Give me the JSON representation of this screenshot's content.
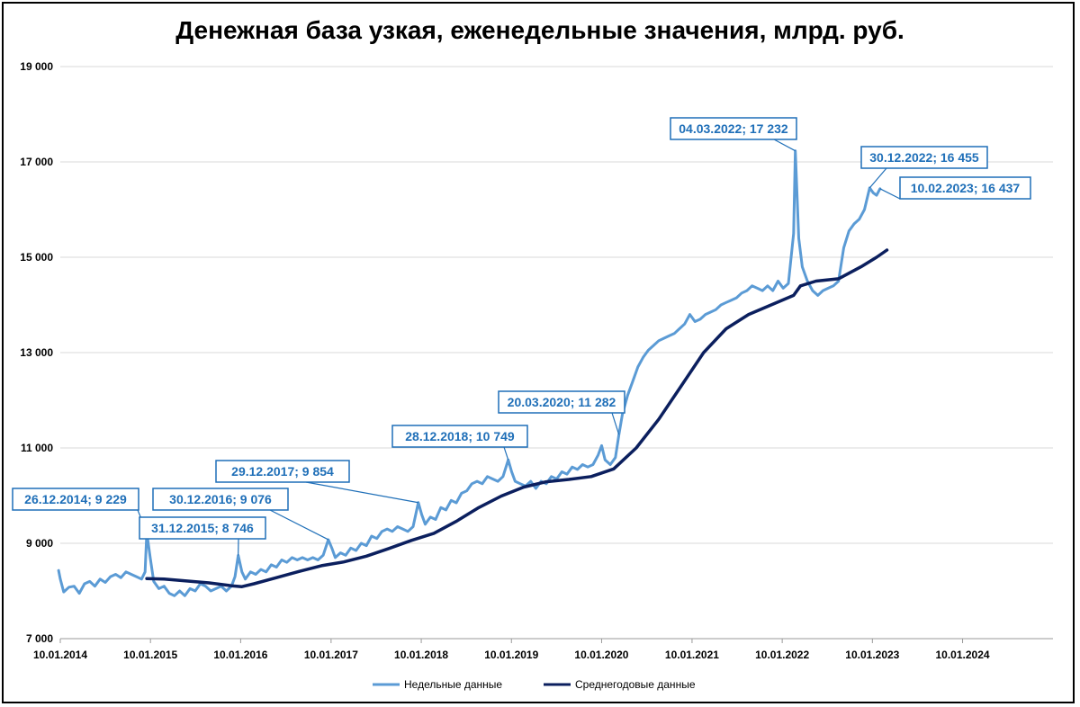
{
  "chart_data": {
    "type": "line",
    "title": "Денежная база узкая, еженедельные значения, млрд. руб.",
    "xlabel": "",
    "ylabel": "",
    "ylim": [
      7000,
      19000
    ],
    "yticks": [
      7000,
      9000,
      11000,
      13000,
      15000,
      17000,
      19000
    ],
    "ytick_labels": [
      "7 000",
      "9 000",
      "11 000",
      "13 000",
      "15 000",
      "17 000",
      "19 000"
    ],
    "xlim": [
      "2014-01-10",
      "2025-01-10"
    ],
    "xticks": [
      "2014-01-10",
      "2015-01-10",
      "2016-01-10",
      "2017-01-10",
      "2018-01-10",
      "2019-01-10",
      "2020-01-10",
      "2021-01-10",
      "2022-01-10",
      "2023-01-10",
      "2024-01-10"
    ],
    "xtick_labels": [
      "10.01.2014",
      "10.01.2015",
      "10.01.2016",
      "10.01.2017",
      "10.01.2018",
      "10.01.2019",
      "10.01.2020",
      "10.01.2021",
      "10.01.2022",
      "10.01.2023",
      "10.01.2024"
    ],
    "grid": true,
    "legend_position": "bottom",
    "series": [
      {
        "name": "Недельные данные",
        "color": "#5b9bd5",
        "points": [
          [
            "2014-01-03",
            8430
          ],
          [
            "2014-01-10",
            8250
          ],
          [
            "2014-01-24",
            7980
          ],
          [
            "2014-02-14",
            8080
          ],
          [
            "2014-03-07",
            8100
          ],
          [
            "2014-03-28",
            7950
          ],
          [
            "2014-04-18",
            8150
          ],
          [
            "2014-05-09",
            8200
          ],
          [
            "2014-05-30",
            8100
          ],
          [
            "2014-06-20",
            8250
          ],
          [
            "2014-07-11",
            8180
          ],
          [
            "2014-08-01",
            8300
          ],
          [
            "2014-08-22",
            8350
          ],
          [
            "2014-09-12",
            8280
          ],
          [
            "2014-10-03",
            8400
          ],
          [
            "2014-10-24",
            8350
          ],
          [
            "2014-11-14",
            8300
          ],
          [
            "2014-12-05",
            8250
          ],
          [
            "2014-12-19",
            8400
          ],
          [
            "2014-12-26",
            9229
          ],
          [
            "2015-01-09",
            8700
          ],
          [
            "2015-01-23",
            8200
          ],
          [
            "2015-02-13",
            8050
          ],
          [
            "2015-03-06",
            8100
          ],
          [
            "2015-03-27",
            7950
          ],
          [
            "2015-04-17",
            7900
          ],
          [
            "2015-05-08",
            8000
          ],
          [
            "2015-05-29",
            7900
          ],
          [
            "2015-06-19",
            8050
          ],
          [
            "2015-07-10",
            8000
          ],
          [
            "2015-07-31",
            8150
          ],
          [
            "2015-08-21",
            8100
          ],
          [
            "2015-09-11",
            8000
          ],
          [
            "2015-10-02",
            8050
          ],
          [
            "2015-10-23",
            8100
          ],
          [
            "2015-11-13",
            8000
          ],
          [
            "2015-12-04",
            8100
          ],
          [
            "2015-12-18",
            8300
          ],
          [
            "2015-12-31",
            8746
          ],
          [
            "2016-01-15",
            8400
          ],
          [
            "2016-01-29",
            8250
          ],
          [
            "2016-02-19",
            8400
          ],
          [
            "2016-03-11",
            8350
          ],
          [
            "2016-04-01",
            8450
          ],
          [
            "2016-04-22",
            8400
          ],
          [
            "2016-05-13",
            8550
          ],
          [
            "2016-06-03",
            8500
          ],
          [
            "2016-06-24",
            8650
          ],
          [
            "2016-07-15",
            8600
          ],
          [
            "2016-08-05",
            8700
          ],
          [
            "2016-08-26",
            8650
          ],
          [
            "2016-09-16",
            8700
          ],
          [
            "2016-10-07",
            8650
          ],
          [
            "2016-10-28",
            8700
          ],
          [
            "2016-11-18",
            8650
          ],
          [
            "2016-12-09",
            8750
          ],
          [
            "2016-12-30",
            9076
          ],
          [
            "2017-01-13",
            8900
          ],
          [
            "2017-01-27",
            8700
          ],
          [
            "2017-02-17",
            8800
          ],
          [
            "2017-03-10",
            8750
          ],
          [
            "2017-03-31",
            8900
          ],
          [
            "2017-04-21",
            8850
          ],
          [
            "2017-05-12",
            9000
          ],
          [
            "2017-06-02",
            8950
          ],
          [
            "2017-06-23",
            9150
          ],
          [
            "2017-07-14",
            9100
          ],
          [
            "2017-08-04",
            9250
          ],
          [
            "2017-08-25",
            9300
          ],
          [
            "2017-09-15",
            9250
          ],
          [
            "2017-10-06",
            9350
          ],
          [
            "2017-10-27",
            9300
          ],
          [
            "2017-11-17",
            9250
          ],
          [
            "2017-12-08",
            9350
          ],
          [
            "2017-12-29",
            9854
          ],
          [
            "2018-01-12",
            9600
          ],
          [
            "2018-01-26",
            9400
          ],
          [
            "2018-02-16",
            9550
          ],
          [
            "2018-03-09",
            9500
          ],
          [
            "2018-03-30",
            9750
          ],
          [
            "2018-04-20",
            9700
          ],
          [
            "2018-05-11",
            9900
          ],
          [
            "2018-06-01",
            9850
          ],
          [
            "2018-06-22",
            10050
          ],
          [
            "2018-07-13",
            10100
          ],
          [
            "2018-08-03",
            10250
          ],
          [
            "2018-08-24",
            10300
          ],
          [
            "2018-09-14",
            10250
          ],
          [
            "2018-10-05",
            10400
          ],
          [
            "2018-10-26",
            10350
          ],
          [
            "2018-11-16",
            10300
          ],
          [
            "2018-12-07",
            10400
          ],
          [
            "2018-12-28",
            10749
          ],
          [
            "2019-01-11",
            10500
          ],
          [
            "2019-01-25",
            10300
          ],
          [
            "2019-02-15",
            10250
          ],
          [
            "2019-03-08",
            10200
          ],
          [
            "2019-03-29",
            10300
          ],
          [
            "2019-04-19",
            10150
          ],
          [
            "2019-05-10",
            10300
          ],
          [
            "2019-05-31",
            10250
          ],
          [
            "2019-06-21",
            10400
          ],
          [
            "2019-07-12",
            10350
          ],
          [
            "2019-08-02",
            10500
          ],
          [
            "2019-08-23",
            10450
          ],
          [
            "2019-09-13",
            10600
          ],
          [
            "2019-10-04",
            10550
          ],
          [
            "2019-10-25",
            10650
          ],
          [
            "2019-11-15",
            10600
          ],
          [
            "2019-12-06",
            10650
          ],
          [
            "2019-12-27",
            10850
          ],
          [
            "2020-01-10",
            11050
          ],
          [
            "2020-01-24",
            10750
          ],
          [
            "2020-02-14",
            10650
          ],
          [
            "2020-03-06",
            10800
          ],
          [
            "2020-03-20",
            11282
          ],
          [
            "2020-04-03",
            11700
          ],
          [
            "2020-04-24",
            12100
          ],
          [
            "2020-05-15",
            12400
          ],
          [
            "2020-06-05",
            12700
          ],
          [
            "2020-06-26",
            12900
          ],
          [
            "2020-07-17",
            13050
          ],
          [
            "2020-08-07",
            13150
          ],
          [
            "2020-08-28",
            13250
          ],
          [
            "2020-09-18",
            13300
          ],
          [
            "2020-10-09",
            13350
          ],
          [
            "2020-10-30",
            13400
          ],
          [
            "2020-11-20",
            13500
          ],
          [
            "2020-12-11",
            13600
          ],
          [
            "2021-01-01",
            13800
          ],
          [
            "2021-01-22",
            13650
          ],
          [
            "2021-02-12",
            13700
          ],
          [
            "2021-03-05",
            13800
          ],
          [
            "2021-03-26",
            13850
          ],
          [
            "2021-04-16",
            13900
          ],
          [
            "2021-05-07",
            14000
          ],
          [
            "2021-05-28",
            14050
          ],
          [
            "2021-06-18",
            14100
          ],
          [
            "2021-07-09",
            14150
          ],
          [
            "2021-07-30",
            14250
          ],
          [
            "2021-08-20",
            14300
          ],
          [
            "2021-09-10",
            14400
          ],
          [
            "2021-10-01",
            14350
          ],
          [
            "2021-10-22",
            14300
          ],
          [
            "2021-11-12",
            14400
          ],
          [
            "2021-12-03",
            14300
          ],
          [
            "2021-12-24",
            14500
          ],
          [
            "2022-01-14",
            14350
          ],
          [
            "2022-02-04",
            14450
          ],
          [
            "2022-02-25",
            15500
          ],
          [
            "2022-03-04",
            17232
          ],
          [
            "2022-03-18",
            15400
          ],
          [
            "2022-04-01",
            14800
          ],
          [
            "2022-04-22",
            14500
          ],
          [
            "2022-05-13",
            14300
          ],
          [
            "2022-06-03",
            14200
          ],
          [
            "2022-06-24",
            14300
          ],
          [
            "2022-07-15",
            14350
          ],
          [
            "2022-08-05",
            14400
          ],
          [
            "2022-08-26",
            14500
          ],
          [
            "2022-09-16",
            15200
          ],
          [
            "2022-10-07",
            15550
          ],
          [
            "2022-10-28",
            15700
          ],
          [
            "2022-11-18",
            15800
          ],
          [
            "2022-12-09",
            16000
          ],
          [
            "2022-12-30",
            16455
          ],
          [
            "2023-01-13",
            16350
          ],
          [
            "2023-01-27",
            16300
          ],
          [
            "2023-02-10",
            16437
          ]
        ]
      },
      {
        "name": "Среднегодовые данные",
        "color": "#0b1f5e",
        "points": [
          [
            "2014-12-26",
            8260
          ],
          [
            "2015-03-06",
            8250
          ],
          [
            "2015-06-05",
            8210
          ],
          [
            "2015-09-04",
            8170
          ],
          [
            "2015-12-04",
            8110
          ],
          [
            "2016-01-15",
            8090
          ],
          [
            "2016-03-04",
            8150
          ],
          [
            "2016-06-03",
            8280
          ],
          [
            "2016-09-02",
            8410
          ],
          [
            "2016-12-02",
            8530
          ],
          [
            "2017-03-03",
            8610
          ],
          [
            "2017-06-02",
            8730
          ],
          [
            "2017-09-01",
            8890
          ],
          [
            "2017-12-01",
            9060
          ],
          [
            "2018-03-02",
            9210
          ],
          [
            "2018-06-01",
            9460
          ],
          [
            "2018-08-31",
            9750
          ],
          [
            "2018-11-30",
            9990
          ],
          [
            "2019-03-01",
            10180
          ],
          [
            "2019-05-31",
            10290
          ],
          [
            "2019-08-30",
            10340
          ],
          [
            "2019-11-29",
            10400
          ],
          [
            "2020-02-28",
            10560
          ],
          [
            "2020-05-29",
            11000
          ],
          [
            "2020-08-28",
            11600
          ],
          [
            "2020-11-27",
            12300
          ],
          [
            "2021-02-26",
            13000
          ],
          [
            "2021-05-28",
            13500
          ],
          [
            "2021-08-27",
            13800
          ],
          [
            "2021-11-26",
            14000
          ],
          [
            "2022-02-25",
            14200
          ],
          [
            "2022-03-25",
            14400
          ],
          [
            "2022-05-27",
            14500
          ],
          [
            "2022-08-26",
            14550
          ],
          [
            "2022-11-25",
            14800
          ],
          [
            "2023-01-27",
            15000
          ],
          [
            "2023-03-10",
            15150
          ]
        ]
      }
    ],
    "annotations": [
      {
        "text": "26.12.2014; 9 229",
        "date": "2014-12-26",
        "value": 9229
      },
      {
        "text": "31.12.2015; 8 746",
        "date": "2015-12-31",
        "value": 8746
      },
      {
        "text": "30.12.2016; 9 076",
        "date": "2016-12-30",
        "value": 9076
      },
      {
        "text": "29.12.2017; 9 854",
        "date": "2017-12-29",
        "value": 9854
      },
      {
        "text": "28.12.2018; 10 749",
        "date": "2018-12-28",
        "value": 10749
      },
      {
        "text": "20.03.2020; 11 282",
        "date": "2020-03-20",
        "value": 11282
      },
      {
        "text": "04.03.2022; 17 232",
        "date": "2022-03-04",
        "value": 17232
      },
      {
        "text": "30.12.2022; 16 455",
        "date": "2022-12-30",
        "value": 16455
      },
      {
        "text": "10.02.2023; 16 437",
        "date": "2023-02-10",
        "value": 16437
      }
    ]
  }
}
